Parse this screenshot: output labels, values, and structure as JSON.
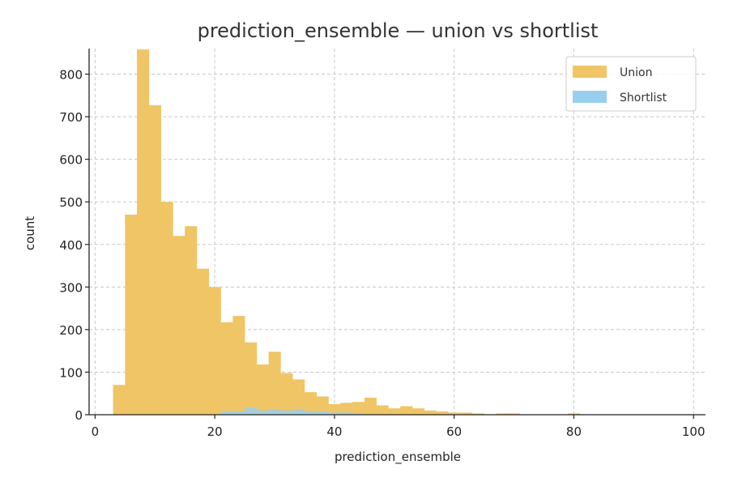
{
  "chart_data": {
    "type": "bar",
    "title": "prediction_ensemble — union vs shortlist",
    "xlabel": "prediction_ensemble",
    "ylabel": "count",
    "xlim": [
      -1,
      102
    ],
    "ylim": [
      0,
      860
    ],
    "xticks": [
      0,
      20,
      40,
      60,
      80,
      100
    ],
    "yticks": [
      0,
      100,
      200,
      300,
      400,
      500,
      600,
      700,
      800
    ],
    "grid": true,
    "legend_position": "top-right",
    "bin_edges": [
      3,
      5,
      7,
      9,
      11,
      13,
      15,
      17,
      19,
      21,
      23,
      25,
      27,
      29,
      31,
      33,
      35,
      37,
      39,
      41,
      43,
      45,
      47,
      49,
      51,
      53,
      55,
      57,
      59,
      61,
      63,
      65,
      67,
      69,
      71,
      73,
      75,
      77,
      79,
      81
    ],
    "series": [
      {
        "name": "Union",
        "color": "#f0c566",
        "values": [
          70,
          470,
          858,
          727,
          500,
          420,
          443,
          343,
          300,
          217,
          232,
          170,
          118,
          148,
          98,
          83,
          53,
          43,
          25,
          28,
          30,
          40,
          22,
          15,
          20,
          15,
          10,
          8,
          5,
          5,
          3,
          1,
          3,
          3,
          1,
          1,
          0,
          1,
          3
        ]
      },
      {
        "name": "Shortlist",
        "color": "#99cfee",
        "values": [
          0,
          0,
          0,
          0,
          0,
          0,
          0,
          0,
          0,
          8,
          8,
          17,
          10,
          13,
          10,
          13,
          8,
          8,
          5,
          5,
          3,
          1,
          0,
          0,
          0,
          0,
          0,
          0,
          0,
          0,
          0,
          0,
          0,
          0,
          0,
          0,
          0,
          0,
          0
        ]
      }
    ]
  }
}
